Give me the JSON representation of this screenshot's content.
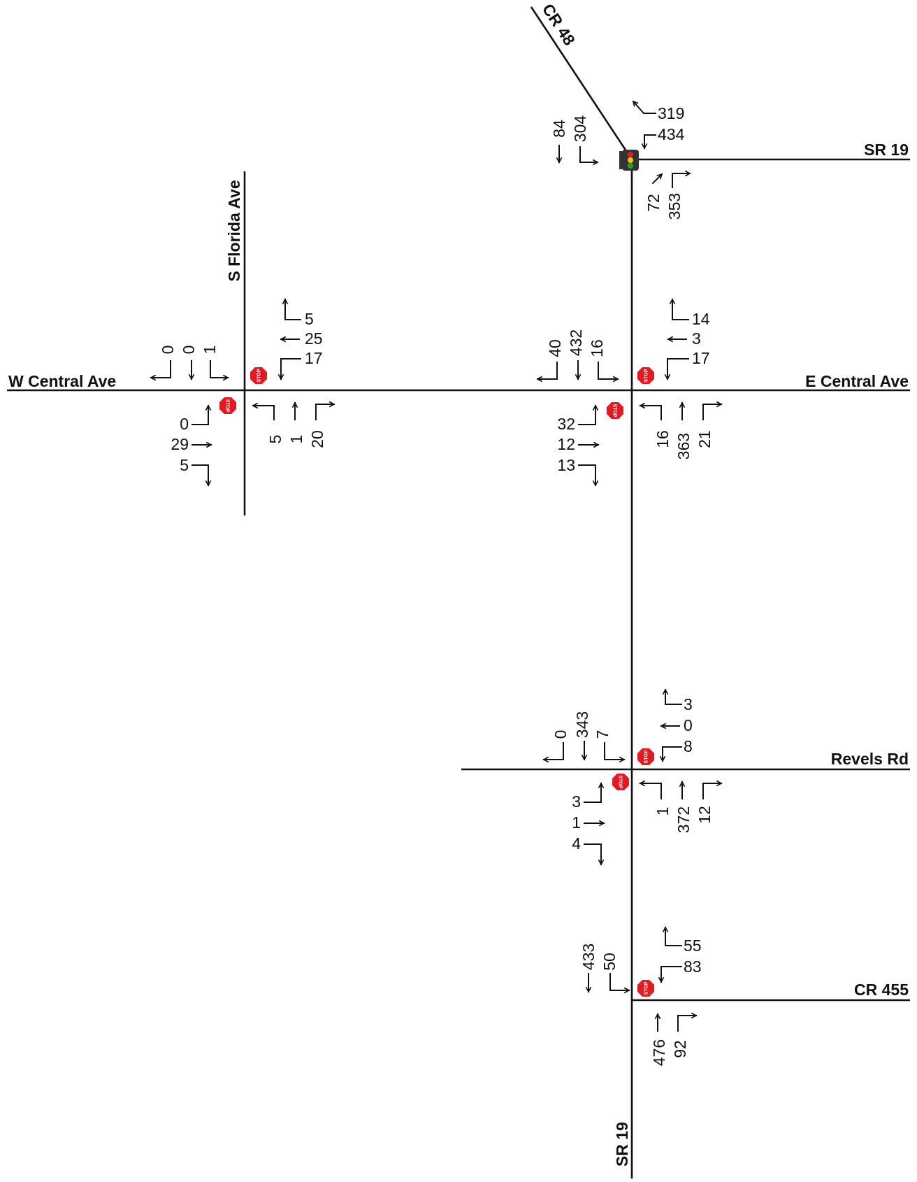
{
  "roads": {
    "sr19_north": "SR 19",
    "sr19_south": "SR 19",
    "cr48": "CR 48",
    "s_florida": "S Florida Ave",
    "w_central": "W Central Ave",
    "e_central": "E Central Ave",
    "revels": "Revels Rd",
    "cr455": "CR 455"
  },
  "stop_text": "STOP",
  "colors": {
    "road": "#111111",
    "stop_sign": "#e01b24",
    "signal_body": "#333333",
    "signal_red": "#e01b24",
    "signal_yellow": "#f2c500",
    "signal_green": "#2aa02a"
  },
  "intersections": {
    "cr48_sr19": {
      "control": "signal",
      "cr48_left": "84",
      "cr48_right": "304",
      "sr19_ew_left": "319",
      "sr19_ew_right": "434",
      "nb_through": "72",
      "nb_right": "353"
    },
    "s_florida_w_central": {
      "control": "stop",
      "sb_right": "0",
      "sb_through": "0",
      "sb_left": "1",
      "wb_right": "5",
      "wb_through": "25",
      "wb_left": "17",
      "eb_left": "0",
      "eb_through": "29",
      "eb_right": "5",
      "nb_left": "5",
      "nb_through": "1",
      "nb_right": "20"
    },
    "sr19_e_central": {
      "control": "stop",
      "sb_right": "40",
      "sb_through": "432",
      "sb_left": "16",
      "wb_right": "14",
      "wb_through": "3",
      "wb_left": "17",
      "eb_left": "32",
      "eb_through": "12",
      "eb_right": "13",
      "nb_left": "16",
      "nb_through": "363",
      "nb_right": "21"
    },
    "sr19_revels": {
      "control": "stop",
      "sb_right": "0",
      "sb_through": "343",
      "sb_left": "7",
      "wb_right": "3",
      "wb_through": "0",
      "wb_left": "8",
      "eb_left": "3",
      "eb_through": "1",
      "eb_right": "4",
      "nb_left": "1",
      "nb_through": "372",
      "nb_right": "12"
    },
    "sr19_cr455": {
      "control": "stop",
      "sb_through": "433",
      "sb_left": "50",
      "wb_right": "55",
      "wb_left": "83",
      "nb_through": "476",
      "nb_right": "92"
    }
  }
}
